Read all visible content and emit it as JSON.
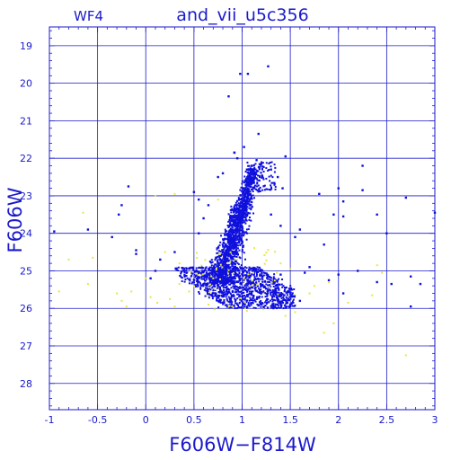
{
  "chart_data": {
    "type": "scatter",
    "panel_label": "WF4",
    "title": "and_vii_u5c356",
    "xlabel": "F606W−F814W",
    "ylabel": "F606W",
    "xlim": [
      -1,
      3
    ],
    "ylim": [
      28.7,
      18.5
    ],
    "y_inverted": true,
    "grid": true,
    "x_ticks": [
      -1,
      -0.5,
      0,
      0.5,
      1,
      1.5,
      2,
      2.5,
      3
    ],
    "x_tick_labels": [
      "-1",
      "-0.5",
      "0",
      "0.5",
      "1",
      "1.5",
      "2",
      "2.5",
      "3"
    ],
    "y_ticks": [
      19,
      20,
      21,
      22,
      23,
      24,
      25,
      26,
      27,
      28
    ],
    "y_tick_labels": [
      "19",
      "20",
      "21",
      "22",
      "23",
      "24",
      "25",
      "26",
      "27",
      "28"
    ],
    "colors": {
      "axis": "#1a1acc",
      "blue_points": "#1010dd",
      "yellow_points": "#e8e840"
    },
    "series": [
      {
        "color": "#1010dd",
        "points": [
          [
            0.98,
            19.75
          ],
          [
            1.06,
            19.75
          ],
          [
            1.27,
            19.55
          ],
          [
            0.86,
            20.35
          ],
          [
            1.17,
            21.35
          ],
          [
            0.92,
            21.85
          ],
          [
            1.02,
            21.7
          ],
          [
            1.45,
            21.95
          ],
          [
            0.8,
            22.4
          ],
          [
            1.05,
            22.3
          ],
          [
            1.1,
            22.2
          ],
          [
            1.2,
            22.15
          ],
          [
            1.3,
            22.3
          ],
          [
            1.37,
            22.5
          ],
          [
            2.25,
            22.2
          ],
          [
            -0.18,
            22.75
          ],
          [
            -0.25,
            23.25
          ],
          [
            -0.28,
            23.5
          ],
          [
            -0.35,
            24.1
          ],
          [
            -0.6,
            23.9
          ],
          [
            -0.95,
            23.95
          ],
          [
            -0.1,
            24.45
          ],
          [
            -0.1,
            24.55
          ],
          [
            2.25,
            22.85
          ],
          [
            2.0,
            22.8
          ],
          [
            1.8,
            22.95
          ],
          [
            2.05,
            23.15
          ],
          [
            1.95,
            23.5
          ],
          [
            2.05,
            23.55
          ],
          [
            2.4,
            23.5
          ],
          [
            2.7,
            23.05
          ],
          [
            3.0,
            23.45
          ],
          [
            2.5,
            24.0
          ],
          [
            1.85,
            24.3
          ],
          [
            2.0,
            25.1
          ],
          [
            2.2,
            25.0
          ],
          [
            2.75,
            25.15
          ],
          [
            2.85,
            25.35
          ],
          [
            1.7,
            24.9
          ],
          [
            1.65,
            25.05
          ],
          [
            1.9,
            25.25
          ],
          [
            2.4,
            25.3
          ],
          [
            2.55,
            25.35
          ],
          [
            2.75,
            25.95
          ],
          [
            1.6,
            25.8
          ],
          [
            1.5,
            25.9
          ],
          [
            1.45,
            25.45
          ],
          [
            1.35,
            25.4
          ],
          [
            2.05,
            25.6
          ],
          [
            1.4,
            25.1
          ],
          [
            1.55,
            24.1
          ],
          [
            1.6,
            23.9
          ],
          [
            1.3,
            23.5
          ],
          [
            1.4,
            23.8
          ],
          [
            0.5,
            22.9
          ],
          [
            0.55,
            23.1
          ],
          [
            0.65,
            23.25
          ],
          [
            0.6,
            23.6
          ],
          [
            0.55,
            24.0
          ],
          [
            0.3,
            24.5
          ],
          [
            0.15,
            24.7
          ],
          [
            0.1,
            25.0
          ],
          [
            0.05,
            25.2
          ],
          [
            0.95,
            22.0
          ],
          [
            0.92,
            21.85
          ],
          [
            0.75,
            22.5
          ],
          [
            1.42,
            22.8
          ],
          [
            1.15,
            22.05
          ]
        ]
      },
      {
        "color": "#e8e840",
        "points": [
          [
            -0.65,
            23.45
          ],
          [
            -0.55,
            24.65
          ],
          [
            -0.8,
            24.7
          ],
          [
            -0.6,
            25.35
          ],
          [
            -0.9,
            25.55
          ],
          [
            -0.25,
            25.8
          ],
          [
            -0.2,
            25.95
          ],
          [
            -0.3,
            25.6
          ],
          [
            -0.15,
            25.55
          ],
          [
            0.0,
            25.2
          ],
          [
            0.05,
            25.7
          ],
          [
            0.12,
            25.85
          ],
          [
            0.25,
            25.75
          ],
          [
            0.3,
            25.95
          ],
          [
            0.1,
            23.0
          ],
          [
            0.3,
            22.95
          ],
          [
            0.35,
            24.8
          ],
          [
            0.35,
            25.35
          ],
          [
            0.45,
            25.55
          ],
          [
            0.2,
            24.5
          ],
          [
            1.4,
            24.8
          ],
          [
            1.5,
            24.95
          ],
          [
            1.55,
            25.65
          ],
          [
            1.55,
            25.95
          ],
          [
            1.55,
            26.1
          ],
          [
            1.7,
            25.6
          ],
          [
            1.75,
            25.4
          ],
          [
            1.9,
            25.3
          ],
          [
            1.95,
            26.4
          ],
          [
            1.85,
            26.65
          ],
          [
            2.1,
            25.85
          ],
          [
            2.35,
            25.65
          ],
          [
            2.4,
            24.85
          ],
          [
            2.45,
            25.05
          ],
          [
            2.7,
            27.25
          ],
          [
            0.9,
            24.2
          ],
          [
            0.85,
            25.1
          ],
          [
            0.95,
            24.7
          ],
          [
            0.65,
            25.9
          ],
          [
            0.75,
            25.45
          ],
          [
            1.2,
            25.0
          ],
          [
            1.3,
            26.0
          ],
          [
            1.35,
            25.5
          ],
          [
            0.75,
            23.1
          ],
          [
            1.0,
            23.3
          ],
          [
            0.82,
            24.55
          ],
          [
            1.1,
            25.25
          ],
          [
            1.45,
            26.2
          ]
        ]
      }
    ]
  }
}
